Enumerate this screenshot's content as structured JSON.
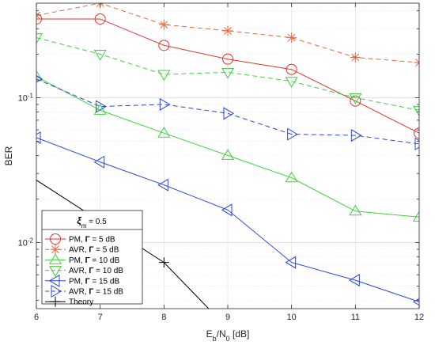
{
  "chart_data": {
    "type": "line",
    "title": "",
    "xlabel": "E_b/N_0 [dB]",
    "xlabel_parts": {
      "main1": "E",
      "sub1": "b",
      "mid": "/N",
      "sub2": "0",
      "tail": " [dB]"
    },
    "ylabel": "BER",
    "xlim": [
      6,
      12
    ],
    "ylim": [
      0.0035,
      0.45
    ],
    "yscale": "log",
    "grid": true,
    "legend_position": "bottom-left",
    "x_ticks": [
      "6",
      "7",
      "8",
      "9",
      "10",
      "11",
      "12"
    ],
    "y_ticks": [
      {
        "value": 0.1,
        "base": "10",
        "exp": "-1"
      },
      {
        "value": 0.01,
        "base": "10",
        "exp": "-2"
      }
    ],
    "legend_title": {
      "symbol": "ξ",
      "sub": "m",
      "rest": " = 0.5"
    },
    "series": [
      {
        "name": "PM, Γ = 5 dB",
        "label_prefix": "PM, ",
        "label_gamma": "Γ",
        "label_suffix": " = 5 dB",
        "color": "#e8312b",
        "dash": "solid",
        "marker": "circle",
        "x": [
          6,
          7,
          8,
          9,
          10,
          11,
          12
        ],
        "y": [
          0.35,
          0.35,
          0.23,
          0.185,
          0.157,
          0.095,
          0.057
        ]
      },
      {
        "name": "AVR, Γ = 5 dB",
        "label_prefix": "AVR, ",
        "label_gamma": "Γ",
        "label_suffix": " = 5 dB",
        "color": "#e8683a",
        "dash": "dashed",
        "marker": "asterisk",
        "x": [
          6,
          7,
          8,
          9,
          10,
          11,
          12
        ],
        "y": [
          0.37,
          0.45,
          0.32,
          0.29,
          0.26,
          0.19,
          0.175
        ]
      },
      {
        "name": "PM, Γ = 10 dB",
        "label_prefix": "PM, ",
        "label_gamma": "Γ",
        "label_suffix": " = 10 dB",
        "color": "#3cd33c",
        "dash": "solid",
        "marker": "triangle-up",
        "x": [
          6,
          7,
          8,
          9,
          10,
          11,
          12
        ],
        "y": [
          0.14,
          0.082,
          0.057,
          0.04,
          0.028,
          0.0165,
          0.015
        ]
      },
      {
        "name": "AVR, Γ = 10 dB",
        "label_prefix": "AVR, ",
        "label_gamma": "Γ",
        "label_suffix": " = 10 dB",
        "color": "#3cd33c",
        "dash": "dashed",
        "marker": "triangle-down",
        "x": [
          6,
          7,
          8,
          9,
          10,
          11,
          12
        ],
        "y": [
          0.26,
          0.2,
          0.145,
          0.15,
          0.13,
          0.1,
          0.082
        ]
      },
      {
        "name": "PM, Γ = 15 dB",
        "label_prefix": "PM, ",
        "label_gamma": "Γ",
        "label_suffix": " = 15 dB",
        "color": "#2b45e0",
        "dash": "solid",
        "marker": "triangle-left",
        "x": [
          6,
          7,
          8,
          9,
          10,
          11,
          12
        ],
        "y": [
          0.053,
          0.036,
          0.025,
          0.0168,
          0.0073,
          0.0055,
          0.0039
        ]
      },
      {
        "name": "AVR, Γ = 15 dB",
        "label_prefix": "AVR, ",
        "label_gamma": "Γ",
        "label_suffix": " = 15 dB",
        "color": "#2b45e0",
        "dash": "dashed",
        "marker": "triangle-right",
        "x": [
          6,
          7,
          8,
          9,
          10,
          11,
          12
        ],
        "y": [
          0.135,
          0.087,
          0.09,
          0.078,
          0.056,
          0.055,
          0.048
        ]
      },
      {
        "name": "Theory",
        "label_prefix": "Theory",
        "label_gamma": "",
        "label_suffix": "",
        "color": "#000000",
        "dash": "solid",
        "marker": "plus",
        "marker_x": [
          8
        ],
        "x": [
          6,
          8,
          8.7
        ],
        "y": [
          0.027,
          0.0073,
          0.0035
        ]
      }
    ]
  }
}
